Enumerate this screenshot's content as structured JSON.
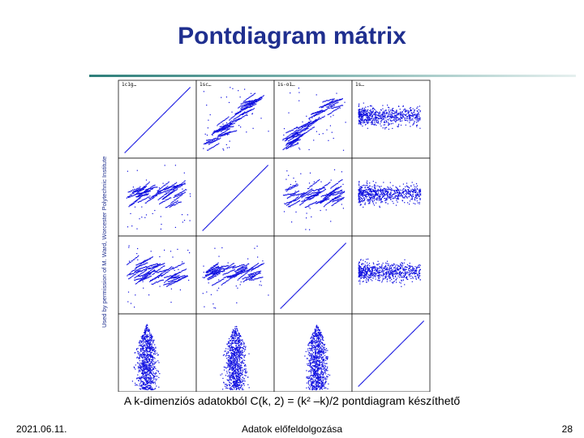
{
  "slide": {
    "title": "Pontdiagram mátrix",
    "credit": "Used by permission of M. Ward, Worcester Polytechnic Institute",
    "caption": "A k-dimenziós adatokból C(k, 2) = (k² –k)/2 pontdiagram készíthető",
    "footer": {
      "date": "2021.06.11.",
      "subject": "Adatok előfeldolgozása",
      "page": "28"
    }
  },
  "chart_data": {
    "type": "scatter",
    "subtype": "scatterplot-matrix",
    "grid_size": 4,
    "column_tags": [
      "1c1g…",
      "1sc…",
      "1s-o1…",
      "1s…"
    ],
    "diagonal": "identity",
    "point_color": "#1010e0"
  }
}
